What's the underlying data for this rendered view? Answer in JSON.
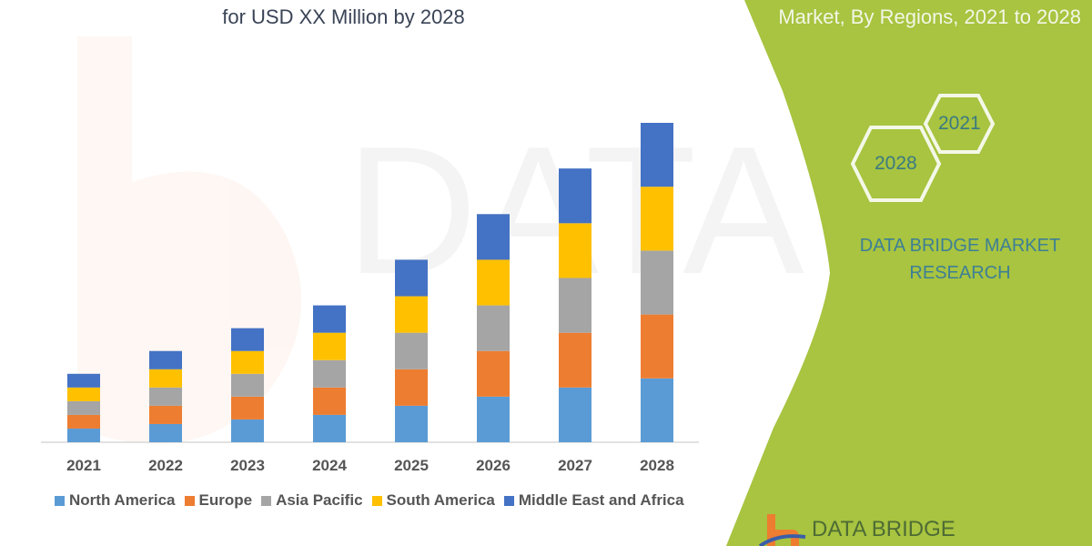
{
  "header": {
    "title_left": "for USD XX Million by 2028",
    "title_right": "Market, By Regions, 2021 to 2028"
  },
  "side_panel": {
    "hex_labels": [
      "2021",
      "2028"
    ],
    "brand_line1": "DATA BRIDGE MARKET",
    "brand_line2": "RESEARCH",
    "logo_text": "DATA BRIDGE",
    "panel_color": "#a8c440"
  },
  "chart_data": {
    "type": "bar",
    "stacked": true,
    "title": "",
    "xlabel": "",
    "ylabel": "",
    "grid": false,
    "legend_position": "bottom",
    "categories": [
      "2021",
      "2022",
      "2023",
      "2024",
      "2025",
      "2026",
      "2027",
      "2028"
    ],
    "series": [
      {
        "name": "North America",
        "color": "#5b9bd5",
        "values": [
          15,
          20,
          25,
          30,
          40,
          50,
          60,
          70
        ]
      },
      {
        "name": "Europe",
        "color": "#ed7d31",
        "values": [
          15,
          20,
          25,
          30,
          40,
          50,
          60,
          70
        ]
      },
      {
        "name": "Asia Pacific",
        "color": "#a5a5a5",
        "values": [
          15,
          20,
          25,
          30,
          40,
          50,
          60,
          70
        ]
      },
      {
        "name": "South America",
        "color": "#ffc000",
        "values": [
          15,
          20,
          25,
          30,
          40,
          50,
          60,
          70
        ]
      },
      {
        "name": "Middle East and Africa",
        "color": "#4472c4",
        "values": [
          15,
          20,
          25,
          30,
          40,
          50,
          60,
          70
        ]
      }
    ]
  }
}
